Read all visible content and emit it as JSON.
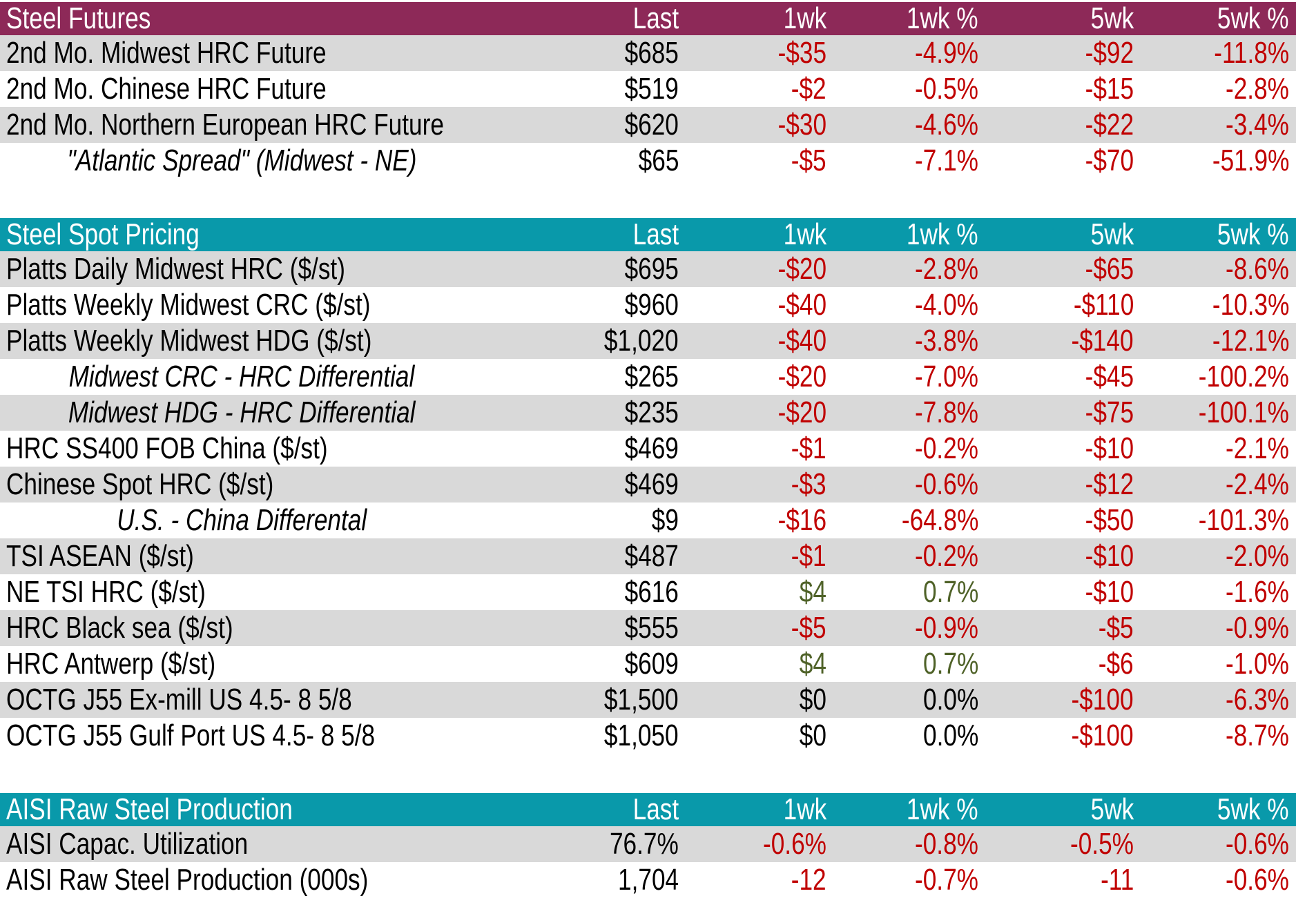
{
  "colors": {
    "header_maroon": "#8D2958",
    "header_teal": "#0999AA",
    "row_stripe": "#D9D9D9",
    "negative_red": "#C00000",
    "positive_green": "#4F6228",
    "text_black": "#000000",
    "header_text": "#FFFFFF"
  },
  "chart_data": [
    {
      "type": "table",
      "title": "Steel Futures",
      "theme": "maroon",
      "columns": [
        "Last",
        "1wk",
        "1wk %",
        "5wk",
        "5wk %"
      ],
      "rows": [
        {
          "label": "2nd Mo. Midwest HRC Future",
          "italic": false,
          "values": [
            "$685",
            "-$35",
            "-4.9%",
            "-$92",
            "-11.8%"
          ],
          "tones": [
            "k",
            "r",
            "r",
            "r",
            "r"
          ]
        },
        {
          "label": "2nd Mo. Chinese HRC Future",
          "italic": false,
          "values": [
            "$519",
            "-$2",
            "-0.5%",
            "-$15",
            "-2.8%"
          ],
          "tones": [
            "k",
            "r",
            "r",
            "r",
            "r"
          ]
        },
        {
          "label": "2nd Mo. Northern European HRC Future",
          "italic": false,
          "values": [
            "$620",
            "-$30",
            "-4.6%",
            "-$22",
            "-3.4%"
          ],
          "tones": [
            "k",
            "r",
            "r",
            "r",
            "r"
          ]
        },
        {
          "label": "\"Atlantic Spread\" (Midwest - NE)",
          "italic": true,
          "values": [
            "$65",
            "-$5",
            "-7.1%",
            "-$70",
            "-51.9%"
          ],
          "tones": [
            "k",
            "r",
            "r",
            "r",
            "r"
          ]
        }
      ]
    },
    {
      "type": "table",
      "title": "Steel Spot Pricing",
      "theme": "teal",
      "columns": [
        "Last",
        "1wk",
        "1wk %",
        "5wk",
        "5wk %"
      ],
      "rows": [
        {
          "label": "Platts Daily Midwest HRC ($/st)",
          "italic": false,
          "values": [
            "$695",
            "-$20",
            "-2.8%",
            "-$65",
            "-8.6%"
          ],
          "tones": [
            "k",
            "r",
            "r",
            "r",
            "r"
          ]
        },
        {
          "label": "Platts Weekly Midwest CRC ($/st)",
          "italic": false,
          "values": [
            "$960",
            "-$40",
            "-4.0%",
            "-$110",
            "-10.3%"
          ],
          "tones": [
            "k",
            "r",
            "r",
            "r",
            "r"
          ]
        },
        {
          "label": "Platts Weekly Midwest HDG ($/st)",
          "italic": false,
          "values": [
            "$1,020",
            "-$40",
            "-3.8%",
            "-$140",
            "-12.1%"
          ],
          "tones": [
            "k",
            "r",
            "r",
            "r",
            "r"
          ]
        },
        {
          "label": "Midwest CRC - HRC Differential",
          "italic": true,
          "values": [
            "$265",
            "-$20",
            "-7.0%",
            "-$45",
            "-100.2%"
          ],
          "tones": [
            "k",
            "r",
            "r",
            "r",
            "r"
          ]
        },
        {
          "label": "Midwest HDG - HRC Differential",
          "italic": true,
          "values": [
            "$235",
            "-$20",
            "-7.8%",
            "-$75",
            "-100.1%"
          ],
          "tones": [
            "k",
            "r",
            "r",
            "r",
            "r"
          ]
        },
        {
          "label": "HRC SS400 FOB China ($/st)",
          "italic": false,
          "values": [
            "$469",
            "-$1",
            "-0.2%",
            "-$10",
            "-2.1%"
          ],
          "tones": [
            "k",
            "r",
            "r",
            "r",
            "r"
          ]
        },
        {
          "label": "Chinese Spot HRC ($/st)",
          "italic": false,
          "values": [
            "$469",
            "-$3",
            "-0.6%",
            "-$12",
            "-2.4%"
          ],
          "tones": [
            "k",
            "r",
            "r",
            "r",
            "r"
          ]
        },
        {
          "label": "U.S. - China Differental",
          "italic": true,
          "values": [
            "$9",
            "-$16",
            "-64.8%",
            "-$50",
            "-101.3%"
          ],
          "tones": [
            "k",
            "r",
            "r",
            "r",
            "r"
          ]
        },
        {
          "label": "TSI ASEAN ($/st)",
          "italic": false,
          "values": [
            "$487",
            "-$1",
            "-0.2%",
            "-$10",
            "-2.0%"
          ],
          "tones": [
            "k",
            "r",
            "r",
            "r",
            "r"
          ]
        },
        {
          "label": "NE TSI HRC ($/st)",
          "italic": false,
          "values": [
            "$616",
            "$4",
            "0.7%",
            "-$10",
            "-1.6%"
          ],
          "tones": [
            "k",
            "g",
            "g",
            "r",
            "r"
          ]
        },
        {
          "label": "HRC Black sea ($/st)",
          "italic": false,
          "values": [
            "$555",
            "-$5",
            "-0.9%",
            "-$5",
            "-0.9%"
          ],
          "tones": [
            "k",
            "r",
            "r",
            "r",
            "r"
          ]
        },
        {
          "label": "HRC Antwerp ($/st)",
          "italic": false,
          "values": [
            "$609",
            "$4",
            "0.7%",
            "-$6",
            "-1.0%"
          ],
          "tones": [
            "k",
            "g",
            "g",
            "r",
            "r"
          ]
        },
        {
          "label": "OCTG J55 Ex-mill US 4.5- 8 5/8",
          "italic": false,
          "values": [
            "$1,500",
            "$0",
            "0.0%",
            "-$100",
            "-6.3%"
          ],
          "tones": [
            "k",
            "k",
            "k",
            "r",
            "r"
          ]
        },
        {
          "label": "OCTG J55 Gulf Port US 4.5- 8 5/8",
          "italic": false,
          "values": [
            "$1,050",
            "$0",
            "0.0%",
            "-$100",
            "-8.7%"
          ],
          "tones": [
            "k",
            "k",
            "k",
            "r",
            "r"
          ]
        }
      ]
    },
    {
      "type": "table",
      "title": "AISI Raw Steel Production",
      "theme": "teal",
      "columns": [
        "Last",
        "1wk",
        "1wk %",
        "5wk",
        "5wk %"
      ],
      "rows": [
        {
          "label": "AISI Capac. Utilization",
          "italic": false,
          "values": [
            "76.7%",
            "-0.6%",
            "-0.8%",
            "-0.5%",
            "-0.6%"
          ],
          "tones": [
            "k",
            "r",
            "r",
            "r",
            "r"
          ]
        },
        {
          "label": "AISI Raw Steel Production (000s)",
          "italic": false,
          "values": [
            "1,704",
            "-12",
            "-0.7%",
            "-11",
            "-0.6%"
          ],
          "tones": [
            "k",
            "r",
            "r",
            "r",
            "r"
          ]
        }
      ]
    }
  ]
}
